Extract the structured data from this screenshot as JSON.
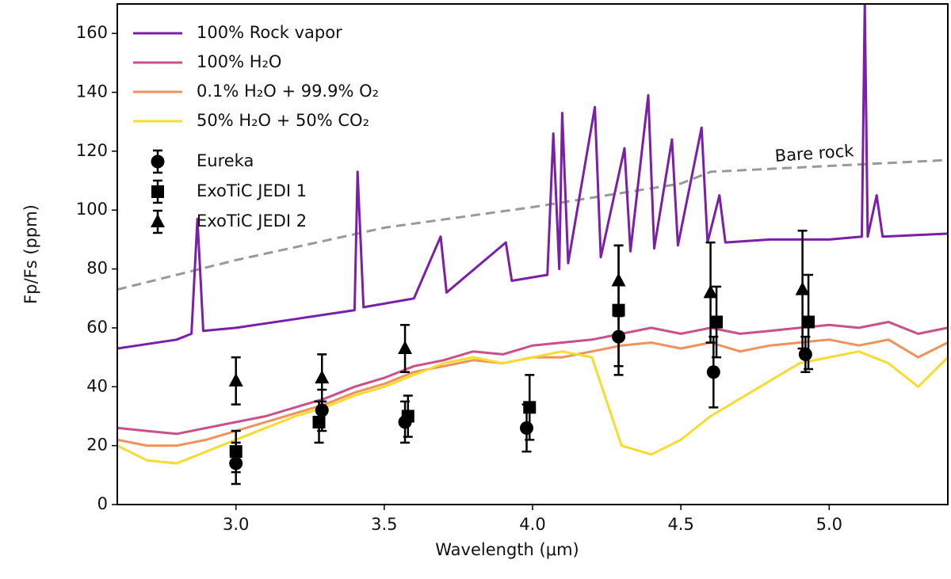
{
  "chart_data": {
    "type": "line",
    "xlabel": "Wavelength (μm)",
    "ylabel": "Fp/Fs (ppm)",
    "xlim": [
      2.6,
      5.4
    ],
    "ylim": [
      0,
      170
    ],
    "xticks": [
      {
        "value": 3,
        "label": "3.0"
      },
      {
        "value": 3.5,
        "label": "3.5"
      },
      {
        "value": 4,
        "label": "4.0"
      },
      {
        "value": 4.5,
        "label": "4.5"
      },
      {
        "value": 5,
        "label": "5.0"
      }
    ],
    "yticks": [
      0,
      20,
      40,
      60,
      80,
      100,
      120,
      140,
      160
    ],
    "legend": "upper left",
    "series": [
      {
        "name": "100% Rock vapor",
        "color": "#7b1fa9",
        "x": [
          2.6,
          2.8,
          2.85,
          2.87,
          2.89,
          3.0,
          3.2,
          3.4,
          3.41,
          3.43,
          3.6,
          3.69,
          3.71,
          3.91,
          3.93,
          4.05,
          4.07,
          4.09,
          4.1,
          4.12,
          4.21,
          4.23,
          4.31,
          4.33,
          4.39,
          4.41,
          4.47,
          4.49,
          4.57,
          4.59,
          4.63,
          4.65,
          4.8,
          5.0,
          5.11,
          5.12,
          5.13,
          5.16,
          5.18,
          5.4
        ],
        "values": [
          53,
          56,
          58,
          97,
          59,
          60,
          63,
          66,
          113,
          67,
          70,
          91,
          72,
          89,
          76,
          78,
          126,
          80,
          133,
          82,
          135,
          84,
          121,
          86,
          139,
          87,
          124,
          88,
          128,
          89,
          105,
          89,
          90,
          90,
          91,
          170,
          91,
          105,
          91,
          92
        ]
      },
      {
        "name": "100% H₂O",
        "color": "#c9508a",
        "x": [
          2.6,
          2.7,
          2.8,
          2.9,
          3.0,
          3.1,
          3.2,
          3.3,
          3.4,
          3.5,
          3.6,
          3.7,
          3.8,
          3.9,
          4.0,
          4.1,
          4.2,
          4.3,
          4.4,
          4.5,
          4.6,
          4.7,
          4.8,
          4.9,
          5.0,
          5.1,
          5.2,
          5.3,
          5.4
        ],
        "values": [
          26,
          25,
          24,
          26,
          28,
          30,
          33,
          36,
          40,
          43,
          47,
          49,
          52,
          51,
          54,
          55,
          56,
          58,
          60,
          58,
          60,
          58,
          59,
          60,
          61,
          60,
          62,
          58,
          60
        ]
      },
      {
        "name": "0.1% H₂O + 99.9% O₂",
        "color": "#f0925a",
        "x": [
          2.6,
          2.7,
          2.8,
          2.9,
          3.0,
          3.1,
          3.2,
          3.3,
          3.4,
          3.5,
          3.6,
          3.7,
          3.8,
          3.9,
          4.0,
          4.1,
          4.2,
          4.3,
          4.4,
          4.5,
          4.6,
          4.7,
          4.8,
          4.9,
          5.0,
          5.1,
          5.2,
          5.3,
          5.4
        ],
        "values": [
          22,
          20,
          20,
          22,
          25,
          28,
          31,
          34,
          38,
          41,
          45,
          47,
          49,
          48,
          50,
          50,
          52,
          54,
          55,
          53,
          55,
          52,
          54,
          55,
          56,
          54,
          56,
          50,
          55
        ]
      },
      {
        "name": "50% H₂O + 50% CO₂",
        "color": "#f5dc2f",
        "x": [
          2.6,
          2.7,
          2.8,
          2.9,
          3.0,
          3.1,
          3.2,
          3.3,
          3.4,
          3.5,
          3.6,
          3.7,
          3.8,
          3.9,
          4.0,
          4.1,
          4.2,
          4.3,
          4.4,
          4.5,
          4.6,
          4.7,
          4.8,
          4.9,
          5.0,
          5.1,
          5.2,
          5.3,
          5.4
        ],
        "values": [
          20,
          15,
          14,
          18,
          22,
          26,
          30,
          33,
          37,
          40,
          44,
          48,
          50,
          48,
          50,
          52,
          50,
          20,
          17,
          22,
          30,
          36,
          42,
          48,
          50,
          52,
          48,
          40,
          50
        ]
      },
      {
        "name": "Eureka",
        "color": "#000000",
        "marker": "circle",
        "x": [
          3.0,
          3.29,
          3.57,
          3.98,
          4.29,
          4.61,
          4.92
        ],
        "values": [
          14,
          32,
          28,
          26,
          57,
          45,
          51
        ],
        "errors": [
          7,
          7,
          7,
          8,
          10,
          12,
          6
        ]
      },
      {
        "name": "ExoTiC JEDI 1",
        "color": "#000000",
        "marker": "square",
        "x": [
          3.0,
          3.28,
          3.58,
          3.99,
          4.29,
          4.62,
          4.93
        ],
        "values": [
          18,
          28,
          30,
          33,
          66,
          62,
          62
        ],
        "errors": [
          7,
          7,
          7,
          11,
          22,
          12,
          16
        ]
      },
      {
        "name": "ExoTiC JEDI 2",
        "color": "#000000",
        "marker": "triangle",
        "x": [
          3.0,
          3.29,
          3.57,
          4.29,
          4.6,
          4.91
        ],
        "values": [
          42,
          43,
          53,
          76,
          72,
          73
        ],
        "errors": [
          8,
          8,
          8,
          12,
          17,
          20
        ]
      }
    ],
    "reference_line": {
      "label": "Bare rock",
      "color": "#999999",
      "dashed": true,
      "x": [
        2.6,
        3.0,
        3.5,
        4.0,
        4.5,
        4.6,
        5.0,
        5.4
      ],
      "values": [
        73,
        83,
        94,
        101,
        109,
        113,
        115,
        117
      ]
    }
  }
}
